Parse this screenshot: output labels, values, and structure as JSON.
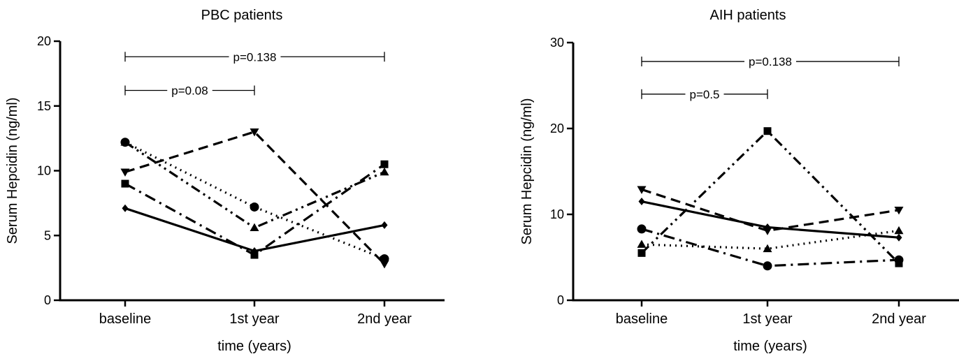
{
  "chart_data": [
    {
      "type": "line",
      "title": "PBC patients",
      "xlabel": "time (years)",
      "ylabel": "Serum Hepcidin (ng/ml)",
      "categories": [
        "baseline",
        "1st year",
        "2nd year"
      ],
      "ylim": [
        0,
        20
      ],
      "yticks": [
        "0",
        "5",
        "10",
        "15",
        "20"
      ],
      "grid": false,
      "series": [
        {
          "marker": "circle",
          "line_style": "dotted",
          "values": [
            12.2,
            7.2,
            3.2
          ]
        },
        {
          "marker": "square",
          "line_style": "dash-dot",
          "values": [
            9.0,
            3.5,
            10.5
          ]
        },
        {
          "marker": "triangle-up",
          "line_style": "dash-dot-dot",
          "values": [
            12.2,
            5.6,
            9.9
          ]
        },
        {
          "marker": "triangle-down",
          "line_style": "dashed",
          "values": [
            9.9,
            13.0,
            2.8
          ]
        },
        {
          "marker": "diamond",
          "line_style": "solid",
          "values": [
            7.1,
            3.8,
            5.8
          ]
        }
      ],
      "annotations": [
        {
          "text": "p=0.138",
          "from": "baseline",
          "to": "2nd year",
          "y": 18.8
        },
        {
          "text": "p=0.08",
          "from": "baseline",
          "to": "1st year",
          "y": 16.2
        }
      ]
    },
    {
      "type": "line",
      "title": "AIH patients",
      "xlabel": "time (years)",
      "ylabel": "Serum Hepcidin (ng/ml)",
      "categories": [
        "baseline",
        "1st year",
        "2nd year"
      ],
      "ylim": [
        0,
        30
      ],
      "yticks": [
        "0",
        "10",
        "20",
        "30"
      ],
      "grid": false,
      "series": [
        {
          "marker": "circle",
          "line_style": "dash-dot",
          "values": [
            8.3,
            4.0,
            4.7
          ]
        },
        {
          "marker": "square",
          "line_style": "dash-dot-dot",
          "values": [
            5.5,
            19.7,
            4.3
          ]
        },
        {
          "marker": "triangle-up",
          "line_style": "dotted",
          "values": [
            6.5,
            6.0,
            8.1
          ]
        },
        {
          "marker": "triangle-down",
          "line_style": "dashed",
          "values": [
            12.9,
            8.1,
            10.5
          ]
        },
        {
          "marker": "diamond",
          "line_style": "solid",
          "values": [
            11.5,
            8.5,
            7.3
          ]
        }
      ],
      "annotations": [
        {
          "text": "p=0.138",
          "from": "baseline",
          "to": "2nd year",
          "y": 27.8
        },
        {
          "text": "p=0.5",
          "from": "baseline",
          "to": "1st year",
          "y": 24.0
        }
      ]
    }
  ]
}
